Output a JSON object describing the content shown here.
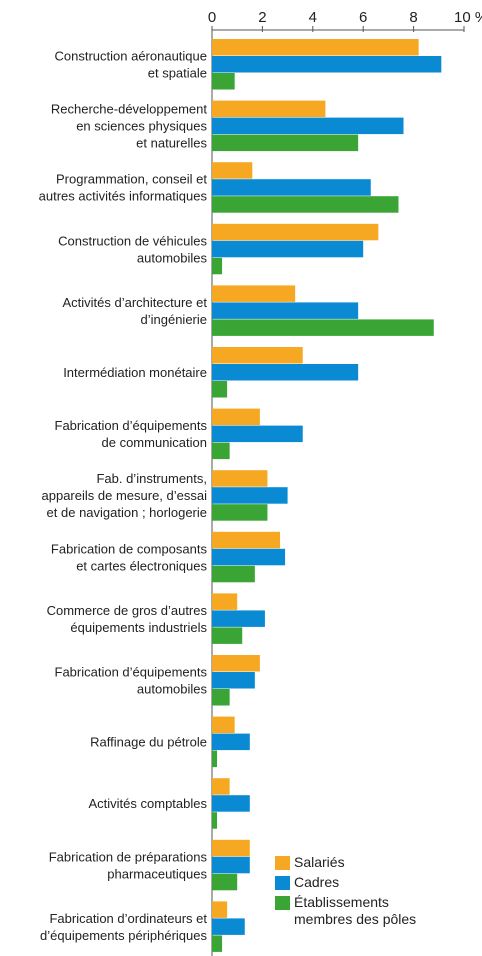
{
  "chart_data": {
    "type": "hbar",
    "categories": [
      [
        "Construction aéronautique",
        "et spatiale"
      ],
      [
        "Recherche-développement",
        "en sciences physiques",
        "et naturelles"
      ],
      [
        "Programmation, conseil et",
        "autres activités informatiques"
      ],
      [
        "Construction de véhicules",
        "automobiles"
      ],
      [
        "Activités d’architecture et",
        "d’ingénierie"
      ],
      [
        "Intermédiation monétaire"
      ],
      [
        "Fabrication d’équipements",
        "de communication"
      ],
      [
        "Fab. d’instruments,",
        "appareils de mesure, d’essai",
        "et de navigation ; horlogerie"
      ],
      [
        "Fabrication de composants",
        "et cartes électroniques"
      ],
      [
        "Commerce de gros d’autres",
        "équipements industriels"
      ],
      [
        "Fabrication d’équipements",
        "automobiles"
      ],
      [
        "Raffinage du pétrole"
      ],
      [
        "Activités comptables"
      ],
      [
        "Fabrication de préparations",
        "pharmaceutiques"
      ],
      [
        "Fabrication d’ordinateurs et",
        "d’équipements périphériques"
      ]
    ],
    "series": [
      {
        "name": "Salariés",
        "color": "#f7a823",
        "values": [
          8.2,
          4.5,
          1.6,
          6.6,
          3.3,
          3.6,
          1.9,
          2.2,
          2.7,
          1.0,
          1.9,
          0.9,
          0.7,
          1.5,
          0.6
        ]
      },
      {
        "name": "Cadres",
        "color": "#0a8ad2",
        "values": [
          9.1,
          7.6,
          6.3,
          6.0,
          5.8,
          5.8,
          3.6,
          3.0,
          2.9,
          2.1,
          1.7,
          1.5,
          1.5,
          1.5,
          1.3
        ]
      },
      {
        "name": "Établissements membres des pôles",
        "color": "#3aa535",
        "values": [
          0.9,
          5.8,
          7.4,
          0.4,
          8.8,
          0.6,
          0.7,
          2.2,
          1.7,
          1.2,
          0.7,
          0.2,
          0.2,
          1.0,
          0.4
        ]
      }
    ],
    "xlim": [
      0,
      10
    ],
    "xticks": [
      0,
      2,
      4,
      6,
      8,
      {
        "value": 10,
        "label": "10 %"
      }
    ],
    "legend": "bottom-right"
  }
}
